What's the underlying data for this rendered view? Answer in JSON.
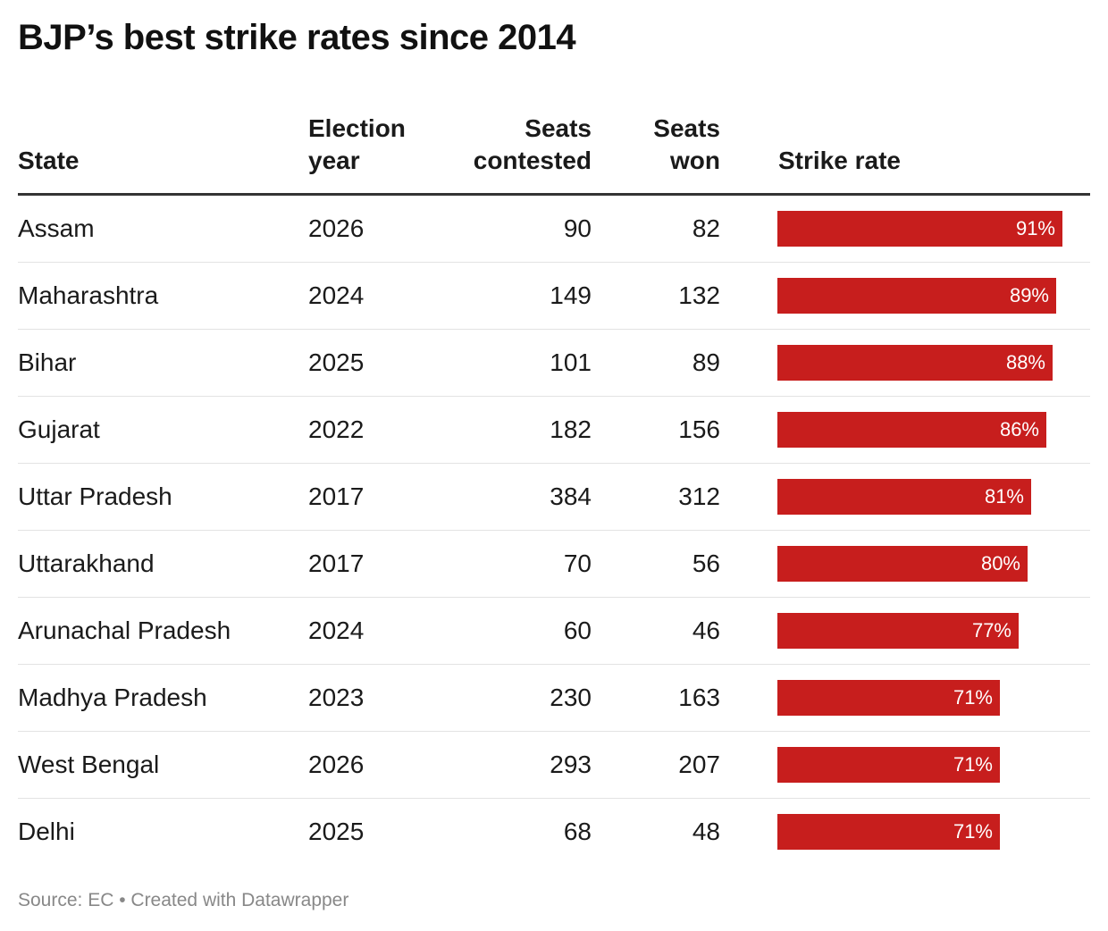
{
  "title": "BJP’s best strike rates since 2014",
  "columns": {
    "state": "State",
    "year_line1": "Election",
    "year_line2": "year",
    "contested_line1": "Seats",
    "contested_line2": "contested",
    "won_line1": "Seats",
    "won_line2": "won",
    "rate": "Strike rate"
  },
  "footer": "Source: EC • Created with Datawrapper",
  "colors": {
    "bar": "#c71e1d",
    "header_rule": "#333333",
    "row_rule": "#e3e3e3"
  },
  "chart_data": {
    "type": "table",
    "title": "BJP’s best strike rates since 2014",
    "columns": [
      "State",
      "Election year",
      "Seats contested",
      "Seats won",
      "Strike rate"
    ],
    "bar_max": 100,
    "rows": [
      {
        "state": "Assam",
        "year": "2026",
        "contested": "90",
        "won": "82",
        "rate": 91,
        "rate_label": "91%"
      },
      {
        "state": "Maharashtra",
        "year": "2024",
        "contested": "149",
        "won": "132",
        "rate": 89,
        "rate_label": "89%"
      },
      {
        "state": "Bihar",
        "year": "2025",
        "contested": "101",
        "won": "89",
        "rate": 88,
        "rate_label": "88%"
      },
      {
        "state": "Gujarat",
        "year": "2022",
        "contested": "182",
        "won": "156",
        "rate": 86,
        "rate_label": "86%"
      },
      {
        "state": "Uttar Pradesh",
        "year": "2017",
        "contested": "384",
        "won": "312",
        "rate": 81,
        "rate_label": "81%"
      },
      {
        "state": "Uttarakhand",
        "year": "2017",
        "contested": "70",
        "won": "56",
        "rate": 80,
        "rate_label": "80%"
      },
      {
        "state": "Arunachal Pradesh",
        "year": "2024",
        "contested": "60",
        "won": "46",
        "rate": 77,
        "rate_label": "77%"
      },
      {
        "state": "Madhya Pradesh",
        "year": "2023",
        "contested": "230",
        "won": "163",
        "rate": 71,
        "rate_label": "71%"
      },
      {
        "state": "West Bengal",
        "year": "2026",
        "contested": "293",
        "won": "207",
        "rate": 71,
        "rate_label": "71%"
      },
      {
        "state": "Delhi",
        "year": "2025",
        "contested": "68",
        "won": "48",
        "rate": 71,
        "rate_label": "71%"
      }
    ]
  }
}
